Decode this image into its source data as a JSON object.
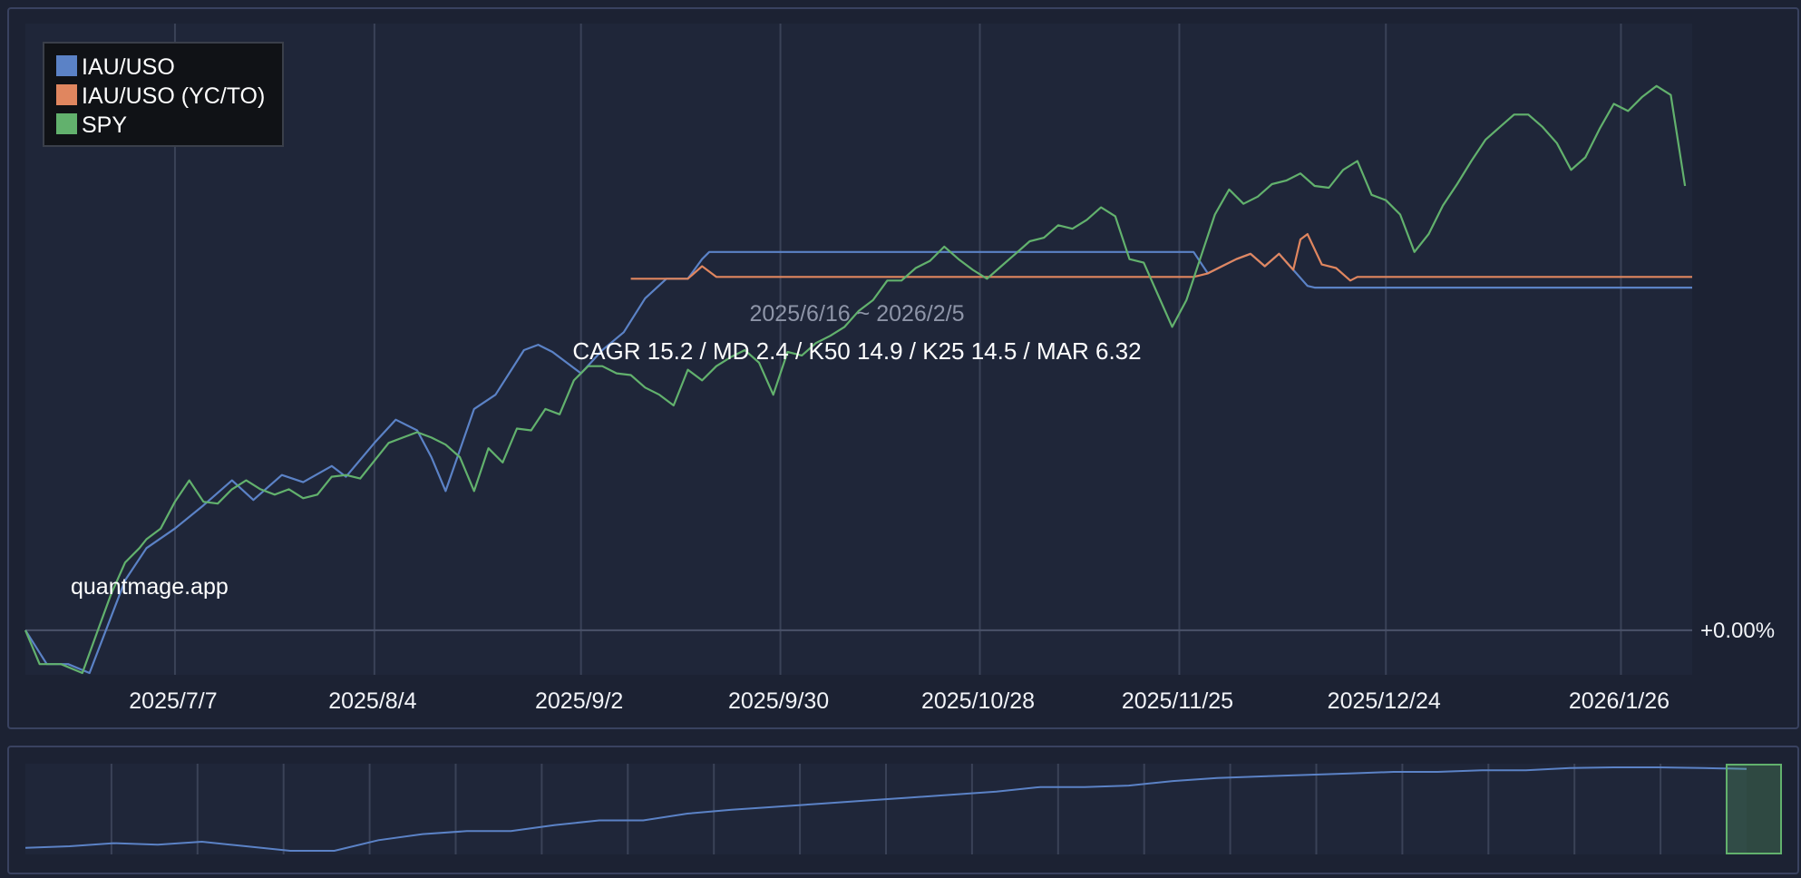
{
  "chart_data": [
    {
      "type": "line",
      "title": "",
      "period": "2025/6/16 ~ 2026/2/5",
      "stats": "CAGR 15.2 / MD 2.4 / K50 14.9 / K25 14.5 / MAR 6.32",
      "watermark": "quantmage.app",
      "x_range": [
        "2025-06-16",
        "2026-02-05"
      ],
      "y_range_pct": [
        -0.25,
        3.4
      ],
      "grid": true,
      "legend_position": "top-left",
      "x_ticks": [
        {
          "date": "2025-07-07",
          "label": "2025/7/7"
        },
        {
          "date": "2025-08-04",
          "label": "2025/8/4"
        },
        {
          "date": "2025-09-02",
          "label": "2025/9/2"
        },
        {
          "date": "2025-09-30",
          "label": "2025/9/30"
        },
        {
          "date": "2025-10-28",
          "label": "2025/10/28"
        },
        {
          "date": "2025-11-25",
          "label": "2025/11/25"
        },
        {
          "date": "2025-12-24",
          "label": "2025/12/24"
        },
        {
          "date": "2026-01-26",
          "label": "2026/1/26"
        }
      ],
      "y_readout": {
        "value": 0,
        "label": "+0.00%"
      },
      "series": [
        {
          "name": "IAU/USO",
          "color": "#5b82c6",
          "points": [
            [
              "2025-06-16",
              0.0
            ],
            [
              "2025-06-19",
              -0.19
            ],
            [
              "2025-06-22",
              -0.19
            ],
            [
              "2025-06-25",
              -0.24
            ],
            [
              "2025-06-30",
              0.28
            ],
            [
              "2025-07-03",
              0.46
            ],
            [
              "2025-07-07",
              0.57
            ],
            [
              "2025-07-11",
              0.7
            ],
            [
              "2025-07-15",
              0.84
            ],
            [
              "2025-07-18",
              0.73
            ],
            [
              "2025-07-22",
              0.87
            ],
            [
              "2025-07-25",
              0.83
            ],
            [
              "2025-07-29",
              0.92
            ],
            [
              "2025-07-31",
              0.86
            ],
            [
              "2025-08-04",
              1.05
            ],
            [
              "2025-08-07",
              1.18
            ],
            [
              "2025-08-10",
              1.12
            ],
            [
              "2025-08-12",
              0.97
            ],
            [
              "2025-08-14",
              0.78
            ],
            [
              "2025-08-18",
              1.24
            ],
            [
              "2025-08-21",
              1.32
            ],
            [
              "2025-08-25",
              1.57
            ],
            [
              "2025-08-27",
              1.6
            ],
            [
              "2025-08-29",
              1.56
            ],
            [
              "2025-09-02",
              1.44
            ],
            [
              "2025-09-05",
              1.57
            ],
            [
              "2025-09-08",
              1.67
            ],
            [
              "2025-09-11",
              1.86
            ],
            [
              "2025-09-14",
              1.97
            ],
            [
              "2025-09-17",
              1.97
            ],
            [
              "2025-09-19",
              2.08
            ],
            [
              "2025-09-20",
              2.12
            ],
            [
              "2025-11-27",
              2.12
            ],
            [
              "2025-11-29",
              2.0
            ],
            [
              "2025-12-01",
              2.04
            ],
            [
              "2025-12-03",
              2.08
            ],
            [
              "2025-12-05",
              2.11
            ],
            [
              "2025-12-07",
              2.04
            ],
            [
              "2025-12-09",
              2.11
            ],
            [
              "2025-12-11",
              2.02
            ],
            [
              "2025-12-13",
              1.93
            ],
            [
              "2025-12-14",
              1.92
            ],
            [
              "2026-02-05",
              1.92
            ]
          ]
        },
        {
          "name": "IAU/USO (YC/TO)",
          "color": "#e0865f",
          "points": [
            [
              "2025-09-09",
              1.97
            ],
            [
              "2025-09-15",
              1.97
            ],
            [
              "2025-09-17",
              1.97
            ],
            [
              "2025-09-19",
              2.04
            ],
            [
              "2025-09-21",
              1.98
            ],
            [
              "2025-11-27",
              1.98
            ],
            [
              "2025-11-29",
              2.0
            ],
            [
              "2025-12-01",
              2.04
            ],
            [
              "2025-12-03",
              2.08
            ],
            [
              "2025-12-05",
              2.11
            ],
            [
              "2025-12-07",
              2.04
            ],
            [
              "2025-12-09",
              2.11
            ],
            [
              "2025-12-11",
              2.02
            ],
            [
              "2025-12-12",
              2.19
            ],
            [
              "2025-12-13",
              2.22
            ],
            [
              "2025-12-15",
              2.05
            ],
            [
              "2025-12-17",
              2.03
            ],
            [
              "2025-12-19",
              1.96
            ],
            [
              "2025-12-20",
              1.98
            ],
            [
              "2026-02-05",
              1.98
            ]
          ]
        },
        {
          "name": "SPY",
          "color": "#62b16d",
          "points": [
            [
              "2025-06-16",
              0.0
            ],
            [
              "2025-06-18",
              -0.19
            ],
            [
              "2025-06-21",
              -0.19
            ],
            [
              "2025-06-24",
              -0.24
            ],
            [
              "2025-06-26",
              -0.02
            ],
            [
              "2025-06-28",
              0.2
            ],
            [
              "2025-06-30",
              0.38
            ],
            [
              "2025-07-02",
              0.46
            ],
            [
              "2025-07-03",
              0.51
            ],
            [
              "2025-07-05",
              0.57
            ],
            [
              "2025-07-07",
              0.72
            ],
            [
              "2025-07-09",
              0.84
            ],
            [
              "2025-07-11",
              0.72
            ],
            [
              "2025-07-13",
              0.71
            ],
            [
              "2025-07-15",
              0.79
            ],
            [
              "2025-07-17",
              0.84
            ],
            [
              "2025-07-19",
              0.79
            ],
            [
              "2025-07-21",
              0.76
            ],
            [
              "2025-07-23",
              0.79
            ],
            [
              "2025-07-25",
              0.74
            ],
            [
              "2025-07-27",
              0.76
            ],
            [
              "2025-07-29",
              0.86
            ],
            [
              "2025-07-31",
              0.87
            ],
            [
              "2025-08-02",
              0.85
            ],
            [
              "2025-08-04",
              0.95
            ],
            [
              "2025-08-06",
              1.05
            ],
            [
              "2025-08-08",
              1.08
            ],
            [
              "2025-08-10",
              1.11
            ],
            [
              "2025-08-12",
              1.08
            ],
            [
              "2025-08-14",
              1.04
            ],
            [
              "2025-08-16",
              0.97
            ],
            [
              "2025-08-18",
              0.78
            ],
            [
              "2025-08-20",
              1.02
            ],
            [
              "2025-08-22",
              0.94
            ],
            [
              "2025-08-24",
              1.13
            ],
            [
              "2025-08-26",
              1.12
            ],
            [
              "2025-08-28",
              1.24
            ],
            [
              "2025-08-30",
              1.21
            ],
            [
              "2025-09-01",
              1.4
            ],
            [
              "2025-09-03",
              1.48
            ],
            [
              "2025-09-05",
              1.48
            ],
            [
              "2025-09-07",
              1.44
            ],
            [
              "2025-09-09",
              1.43
            ],
            [
              "2025-09-11",
              1.36
            ],
            [
              "2025-09-13",
              1.32
            ],
            [
              "2025-09-15",
              1.26
            ],
            [
              "2025-09-17",
              1.46
            ],
            [
              "2025-09-19",
              1.4
            ],
            [
              "2025-09-21",
              1.48
            ],
            [
              "2025-09-23",
              1.53
            ],
            [
              "2025-09-25",
              1.57
            ],
            [
              "2025-09-27",
              1.5
            ],
            [
              "2025-09-29",
              1.32
            ],
            [
              "2025-10-01",
              1.56
            ],
            [
              "2025-10-03",
              1.54
            ],
            [
              "2025-10-05",
              1.61
            ],
            [
              "2025-10-07",
              1.65
            ],
            [
              "2025-10-09",
              1.7
            ],
            [
              "2025-10-11",
              1.79
            ],
            [
              "2025-10-13",
              1.85
            ],
            [
              "2025-10-15",
              1.96
            ],
            [
              "2025-10-17",
              1.96
            ],
            [
              "2025-10-19",
              2.03
            ],
            [
              "2025-10-21",
              2.07
            ],
            [
              "2025-10-23",
              2.15
            ],
            [
              "2025-10-25",
              2.08
            ],
            [
              "2025-10-27",
              2.02
            ],
            [
              "2025-10-29",
              1.97
            ],
            [
              "2025-10-31",
              2.04
            ],
            [
              "2025-11-02",
              2.11
            ],
            [
              "2025-11-04",
              2.18
            ],
            [
              "2025-11-06",
              2.2
            ],
            [
              "2025-11-08",
              2.27
            ],
            [
              "2025-11-10",
              2.25
            ],
            [
              "2025-11-12",
              2.3
            ],
            [
              "2025-11-14",
              2.37
            ],
            [
              "2025-11-16",
              2.32
            ],
            [
              "2025-11-18",
              2.08
            ],
            [
              "2025-11-20",
              2.06
            ],
            [
              "2025-11-22",
              1.88
            ],
            [
              "2025-11-24",
              1.7
            ],
            [
              "2025-11-26",
              1.85
            ],
            [
              "2025-11-28",
              2.09
            ],
            [
              "2025-11-30",
              2.33
            ],
            [
              "2025-12-02",
              2.47
            ],
            [
              "2025-12-04",
              2.39
            ],
            [
              "2025-12-06",
              2.43
            ],
            [
              "2025-12-08",
              2.5
            ],
            [
              "2025-12-10",
              2.52
            ],
            [
              "2025-12-12",
              2.56
            ],
            [
              "2025-12-14",
              2.49
            ],
            [
              "2025-12-16",
              2.48
            ],
            [
              "2025-12-18",
              2.58
            ],
            [
              "2025-12-20",
              2.63
            ],
            [
              "2025-12-22",
              2.44
            ],
            [
              "2025-12-24",
              2.41
            ],
            [
              "2025-12-26",
              2.33
            ],
            [
              "2025-12-28",
              2.12
            ],
            [
              "2025-12-30",
              2.22
            ],
            [
              "2026-01-01",
              2.38
            ],
            [
              "2026-01-03",
              2.5
            ],
            [
              "2026-01-05",
              2.63
            ],
            [
              "2026-01-07",
              2.75
            ],
            [
              "2026-01-09",
              2.82
            ],
            [
              "2026-01-11",
              2.89
            ],
            [
              "2026-01-13",
              2.89
            ],
            [
              "2026-01-15",
              2.82
            ],
            [
              "2026-01-17",
              2.73
            ],
            [
              "2026-01-19",
              2.58
            ],
            [
              "2026-01-21",
              2.65
            ],
            [
              "2026-01-23",
              2.81
            ],
            [
              "2026-01-25",
              2.95
            ],
            [
              "2026-01-27",
              2.91
            ],
            [
              "2026-01-29",
              2.99
            ],
            [
              "2026-01-31",
              3.05
            ],
            [
              "2026-02-02",
              3.0
            ],
            [
              "2026-02-04",
              2.49
            ]
          ]
        }
      ]
    },
    {
      "type": "area",
      "title": "",
      "grid": true,
      "selection_range": [
        "2025-06-16",
        "2026-02-05"
      ],
      "series": [
        {
          "name": "IAU/USO",
          "color": "#5b82c6",
          "values": [
            0.0,
            0.02,
            0.06,
            0.04,
            0.08,
            0.02,
            -0.04,
            -0.04,
            0.1,
            0.18,
            0.22,
            0.22,
            0.3,
            0.36,
            0.36,
            0.45,
            0.5,
            0.54,
            0.58,
            0.62,
            0.66,
            0.7,
            0.74,
            0.8,
            0.8,
            0.82,
            0.88,
            0.92,
            0.94,
            0.96,
            0.98,
            1.0,
            1.0,
            1.02,
            1.02,
            1.05,
            1.06,
            1.06,
            1.05,
            1.04
          ]
        }
      ]
    }
  ]
}
